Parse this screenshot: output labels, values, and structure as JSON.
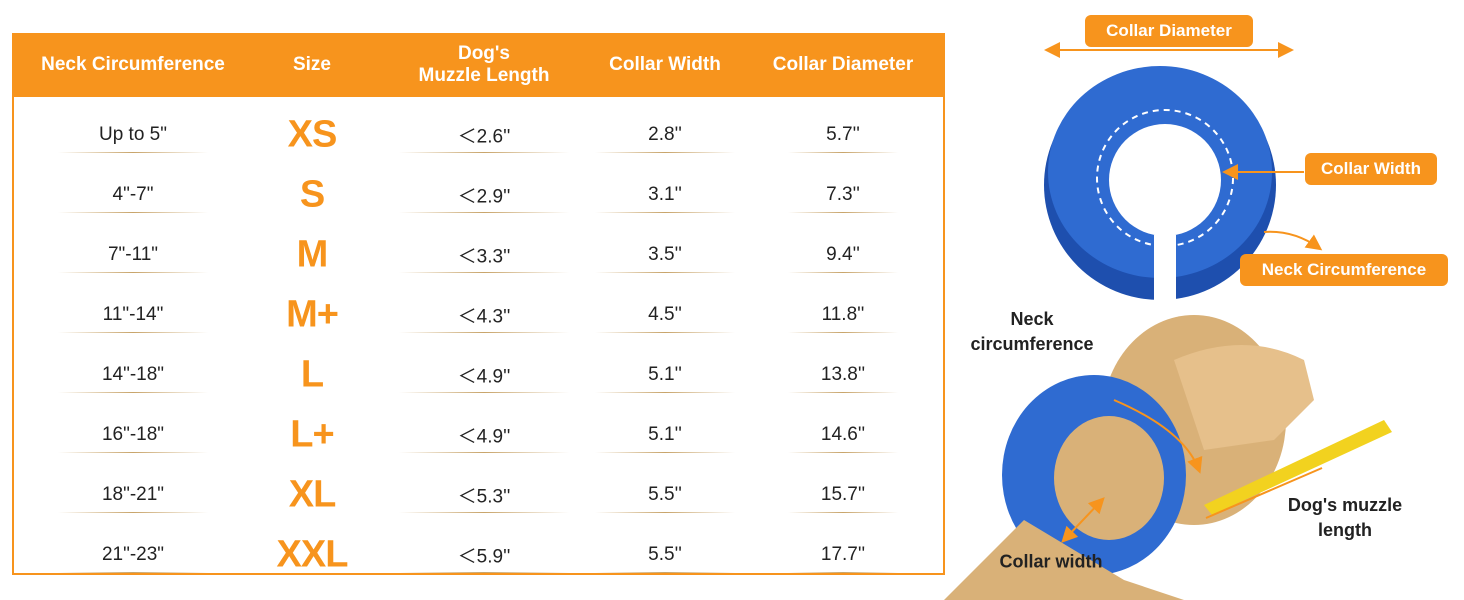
{
  "table": {
    "headers": [
      "Neck Circumference",
      "Size",
      "Dog's\nMuzzle Length",
      "Collar Width",
      "Collar Diameter"
    ],
    "rows": [
      [
        "Up to 5\"",
        "XS",
        "＜2.6''",
        "2.8''",
        "5.7''"
      ],
      [
        "4\"-7\"",
        "S",
        "＜2.9''",
        "3.1''",
        "7.3''"
      ],
      [
        "7\"-11\"",
        "M",
        "＜3.3''",
        "3.5''",
        "9.4''"
      ],
      [
        "11\"-14\"",
        "M+",
        "＜4.3''",
        "4.5''",
        "11.8''"
      ],
      [
        "14\"-18\"",
        "L",
        "＜4.9''",
        "5.1''",
        "13.8''"
      ],
      [
        "16\"-18\"",
        "L+",
        "＜4.9''",
        "5.1''",
        "14.6''"
      ],
      [
        "18\"-21\"",
        "XL",
        "＜5.3''",
        "5.5''",
        "15.7''"
      ],
      [
        "21\"-23\"",
        "XXL",
        "＜5.9''",
        "5.5''",
        "17.7''"
      ]
    ]
  },
  "diagram": {
    "collar_diameter": "Collar Diameter",
    "collar_width": "Collar Width",
    "neck_circumference": "Neck Circumference",
    "dog_neck": "Neck\ncircumference",
    "dog_collar_width": "Collar width",
    "dog_muzzle": "Dog's muzzle\nlength"
  }
}
